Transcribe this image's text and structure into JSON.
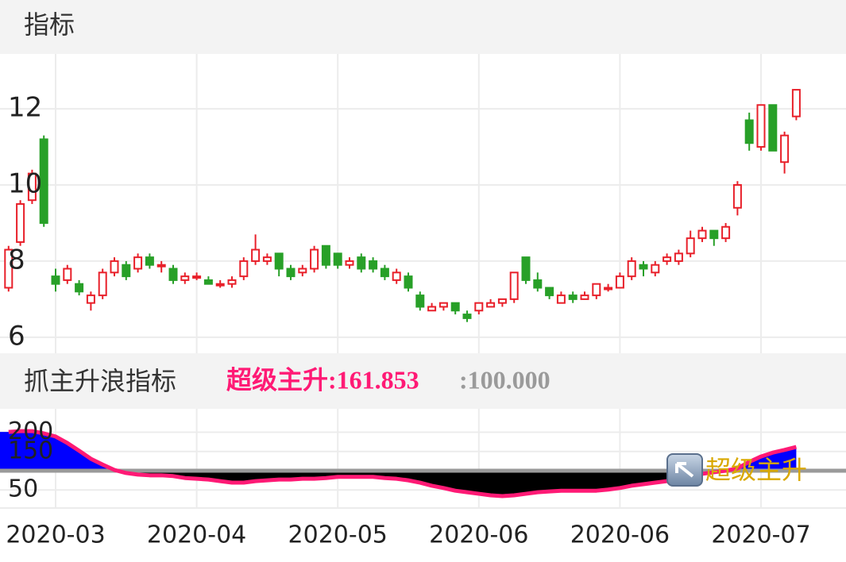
{
  "chart_data": [
    {
      "type": "candlestick",
      "title": "指标",
      "categories": [
        null,
        null,
        null,
        null,
        "2020-03",
        null,
        null,
        null,
        null,
        null,
        null,
        null,
        null,
        null,
        null,
        null,
        "2020-04",
        null,
        null,
        null,
        null,
        null,
        null,
        null,
        null,
        null,
        null,
        null,
        "2020-05",
        null,
        null,
        null,
        null,
        null,
        null,
        null,
        null,
        null,
        null,
        null,
        "2020-06",
        null,
        null,
        null,
        null,
        null,
        null,
        null,
        null,
        null,
        null,
        null,
        "2020-06",
        null,
        null,
        null,
        null,
        null,
        null,
        null,
        null,
        null,
        null,
        null,
        "2020-07",
        null,
        null,
        null
      ],
      "open": [
        7.3,
        8.5,
        9.6,
        11.2,
        7.6,
        7.5,
        7.4,
        6.9,
        7.1,
        7.7,
        7.9,
        7.8,
        8.1,
        7.9,
        7.8,
        7.5,
        7.6,
        7.5,
        7.4,
        7.4,
        7.6,
        8.0,
        8.0,
        8.2,
        7.8,
        7.7,
        7.8,
        8.4,
        8.2,
        7.9,
        8.1,
        8.0,
        7.8,
        7.5,
        7.6,
        7.1,
        6.7,
        6.8,
        6.9,
        6.6,
        6.7,
        6.8,
        6.9,
        7.0,
        8.1,
        7.5,
        7.3,
        6.9,
        7.1,
        7.0,
        7.1,
        7.3,
        7.3,
        7.6,
        7.9,
        7.7,
        8.0,
        8.0,
        8.2,
        8.6,
        8.8,
        8.6,
        9.4,
        11.7,
        11.0,
        12.1,
        10.6,
        11.8
      ],
      "high": [
        8.4,
        9.6,
        10.4,
        11.3,
        7.8,
        7.9,
        7.5,
        7.2,
        7.8,
        8.1,
        8.0,
        8.2,
        8.2,
        8.0,
        7.9,
        7.7,
        7.7,
        7.6,
        7.5,
        7.6,
        8.1,
        8.7,
        8.2,
        8.2,
        7.9,
        7.9,
        8.4,
        8.4,
        8.2,
        8.1,
        8.2,
        8.1,
        7.9,
        7.8,
        7.7,
        7.2,
        6.9,
        6.9,
        6.9,
        6.7,
        6.9,
        7.0,
        7.0,
        7.7,
        8.1,
        7.7,
        7.3,
        7.2,
        7.2,
        7.2,
        7.4,
        7.4,
        7.7,
        8.1,
        8.0,
        8.0,
        8.2,
        8.3,
        8.8,
        8.9,
        8.8,
        9.0,
        10.1,
        11.9,
        12.1,
        12.1,
        11.4,
        12.5
      ],
      "low": [
        7.2,
        8.4,
        9.5,
        8.9,
        7.2,
        7.4,
        7.1,
        6.7,
        7.0,
        7.6,
        7.5,
        7.7,
        7.8,
        7.7,
        7.4,
        7.4,
        7.5,
        7.4,
        7.3,
        7.3,
        7.5,
        7.9,
        7.9,
        7.6,
        7.5,
        7.6,
        7.7,
        7.8,
        7.8,
        7.8,
        7.7,
        7.7,
        7.5,
        7.4,
        7.2,
        6.7,
        6.7,
        6.7,
        6.6,
        6.4,
        6.6,
        6.8,
        6.8,
        6.9,
        7.4,
        7.2,
        7.0,
        6.9,
        6.9,
        7.0,
        7.0,
        7.2,
        7.3,
        7.5,
        7.6,
        7.6,
        7.9,
        7.9,
        8.1,
        8.5,
        8.4,
        8.5,
        9.2,
        10.9,
        10.9,
        10.9,
        10.3,
        11.7
      ],
      "close": [
        8.3,
        9.5,
        10.3,
        9.0,
        7.4,
        7.8,
        7.2,
        7.1,
        7.7,
        8.0,
        7.6,
        8.1,
        7.9,
        7.9,
        7.5,
        7.6,
        7.6,
        7.4,
        7.4,
        7.5,
        8.0,
        8.3,
        8.1,
        7.8,
        7.6,
        7.8,
        8.3,
        7.9,
        7.9,
        8.0,
        7.8,
        7.8,
        7.6,
        7.7,
        7.3,
        6.8,
        6.8,
        6.9,
        6.7,
        6.5,
        6.9,
        6.9,
        7.0,
        7.7,
        7.5,
        7.3,
        7.1,
        7.1,
        7.0,
        7.1,
        7.4,
        7.3,
        7.6,
        8.0,
        7.8,
        7.9,
        8.1,
        8.2,
        8.6,
        8.8,
        8.6,
        8.9,
        10.0,
        11.1,
        12.1,
        10.9,
        11.3,
        12.5
      ],
      "up_color": "#e8202a",
      "down_color": "#28a028",
      "ylim": [
        5.58,
        13.44
      ],
      "yticks": [
        6,
        8,
        10,
        12
      ],
      "grid": true
    },
    {
      "type": "area_line",
      "title": "抓主升浪指标",
      "indicator_label": "超级主升:161.853",
      "reference_label": ":100.000",
      "annotation": "超级主升",
      "series": [
        {
          "name": "超级主升",
          "color": "#ff1a75",
          "values": [
            201,
            203,
            203,
            197,
            189,
            172,
            152,
            131,
            116,
            102,
            94,
            90,
            88,
            88,
            86,
            81,
            79,
            77,
            73,
            69,
            69,
            73,
            75,
            77,
            77,
            79,
            79,
            81,
            84,
            84,
            84,
            84,
            81,
            79,
            75,
            69,
            61,
            55,
            48,
            44,
            40,
            36,
            34,
            36,
            40,
            44,
            46,
            48,
            48,
            48,
            48,
            51,
            55,
            61,
            65,
            69,
            73,
            79,
            86,
            92,
            96,
            100,
            106,
            123,
            137,
            147,
            154,
            161.853
          ]
        }
      ],
      "reference": 100,
      "reference_color": "#9a9a9a",
      "above_color": "#0000ff",
      "below_color": "#000000",
      "ylim": [
        3,
        261
      ],
      "yticks": [
        50,
        150,
        200
      ]
    }
  ]
}
